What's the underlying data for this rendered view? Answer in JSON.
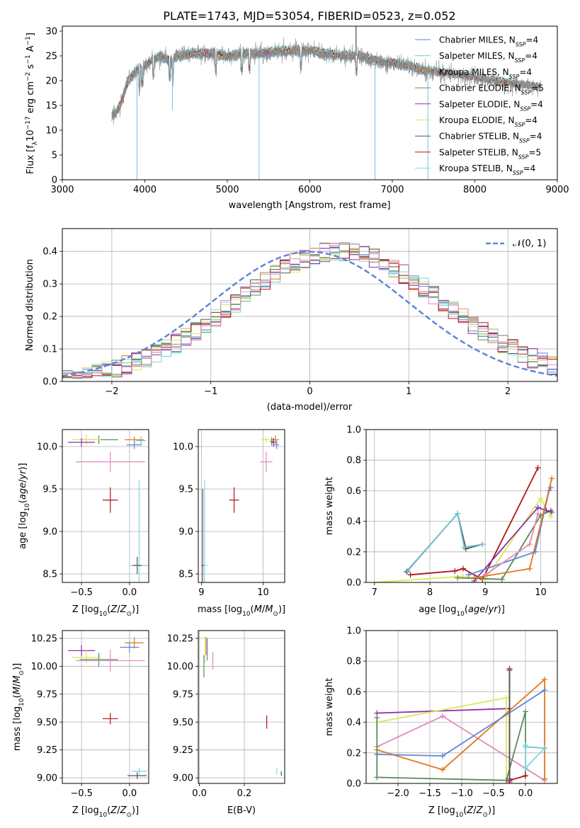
{
  "figure_title": "PLATE=1743, MJD=53054, FIBERID=0523, z=0.052",
  "colors": {
    "chabrier_miles": "#5f86d6",
    "salpeter_miles": "#6fc6d8",
    "kroupa_miles": "#e0781f",
    "chabrier_elodie": "#5c8a5c",
    "salpeter_elodie": "#8e2fa6",
    "kroupa_elodie": "#d9e85a",
    "chabrier_stelib": "#555555",
    "salpeter_stelib": "#b01515",
    "kroupa_stelib": "#7fd8e0",
    "pink": "#e08ac0",
    "data_grey": "#8c8c8c",
    "normal_curve": "#5f86d6"
  },
  "chart_data": [
    {
      "id": "spectrum",
      "type": "line",
      "title": "PLATE=1743, MJD=53054, FIBERID=0523, z=0.052",
      "xlabel": "wavelength [Angstrom, rest frame]",
      "ylabel": "Flux [f_λ 10^-17 erg cm^-2 s^-1 A^-1]",
      "xlim": [
        3000,
        9000
      ],
      "ylim": [
        0,
        31
      ],
      "xticks": [
        3000,
        4000,
        5000,
        6000,
        7000,
        8000,
        9000
      ],
      "yticks": [
        0,
        5,
        10,
        15,
        20,
        25,
        30
      ],
      "grid": false,
      "legend_position": "upper-right",
      "series": [
        {
          "name": "Chabrier MILES, N_SSP=4"
        },
        {
          "name": "Salpeter MILES, N_SSP=4"
        },
        {
          "name": "Kroupa MILES, N_SSP=4"
        },
        {
          "name": "Chabrier ELODIE, N_SSP=5"
        },
        {
          "name": "Salpeter ELODIE, N_SSP=4"
        },
        {
          "name": "Kroupa ELODIE, N_SSP=4"
        },
        {
          "name": "Chabrier STELIB, N_SSP=4"
        },
        {
          "name": "Salpeter STELIB, N_SSP=5"
        },
        {
          "name": "Kroupa STELIB, N_SSP=4"
        }
      ],
      "continuum": [
        [
          3600,
          13
        ],
        [
          3650,
          13.5
        ],
        [
          3700,
          15
        ],
        [
          3800,
          20
        ],
        [
          3900,
          22
        ],
        [
          4000,
          23
        ],
        [
          4100,
          24.5
        ],
        [
          4200,
          25
        ],
        [
          4300,
          24
        ],
        [
          4400,
          25
        ],
        [
          4600,
          25.5
        ],
        [
          4800,
          25.5
        ],
        [
          5000,
          25
        ],
        [
          5200,
          25.5
        ],
        [
          5400,
          25.5
        ],
        [
          5600,
          26
        ],
        [
          5800,
          26
        ],
        [
          6000,
          26
        ],
        [
          6200,
          25.5
        ],
        [
          6400,
          25
        ],
        [
          6600,
          25
        ],
        [
          6800,
          24
        ],
        [
          7000,
          23.5
        ],
        [
          7200,
          23
        ],
        [
          7400,
          22
        ],
        [
          7600,
          21.5
        ],
        [
          7800,
          21
        ],
        [
          8000,
          20.5
        ],
        [
          8200,
          20
        ],
        [
          8400,
          19.5
        ],
        [
          8600,
          19
        ],
        [
          8800,
          18.7
        ]
      ]
    },
    {
      "id": "residuals",
      "type": "step",
      "xlabel": "(data-model)/error",
      "ylabel": "Normed distribution",
      "xlim": [
        -2.5,
        2.5
      ],
      "ylim": [
        0,
        0.47
      ],
      "xticks": [
        -2,
        -1,
        0,
        1,
        2
      ],
      "yticks": [
        0.0,
        0.1,
        0.2,
        0.3,
        0.4
      ],
      "grid": true,
      "legend_position": "upper-right",
      "legend_label": "𝒩(0, 1)"
    },
    {
      "id": "age_vs_Z",
      "type": "errorbar",
      "xlabel": "Z [log10(Z/Z⊙)]",
      "ylabel": "age  [log10(age/yr)]",
      "xlim": [
        -0.7,
        0.2
      ],
      "ylim": [
        8.4,
        10.2
      ],
      "xticks": [
        -0.5,
        0.0
      ],
      "yticks": [
        8.5,
        9.0,
        9.5,
        10.0
      ],
      "grid": true,
      "points": [
        {
          "c": "kroupa_miles",
          "x": 0.05,
          "xe": 0.1,
          "y": 10.08,
          "ye": 0.04
        },
        {
          "c": "chabrier_elodie",
          "x": -0.32,
          "xe": 0.2,
          "y": 10.08,
          "ye": 0.05
        },
        {
          "c": "kroupa_elodie",
          "x": -0.45,
          "xe": 0.15,
          "y": 10.08,
          "ye": 0.06
        },
        {
          "c": "salpeter_elodie",
          "x": -0.5,
          "xe": 0.14,
          "y": 10.05,
          "ye": 0.05
        },
        {
          "c": "chabrier_miles",
          "x": 0.05,
          "xe": 0.08,
          "y": 10.02,
          "ye": 0.05
        },
        {
          "c": "salpeter_miles",
          "x": 0.12,
          "xe": 0.05,
          "y": 10.07,
          "ye": 0.05
        },
        {
          "c": "pink",
          "x": -0.2,
          "xe": 0.36,
          "y": 9.82,
          "ye": 0.12
        },
        {
          "c": "salpeter_stelib",
          "x": -0.2,
          "xe": 0.08,
          "y": 9.37,
          "ye": 0.15
        },
        {
          "c": "kroupa_stelib",
          "x": 0.1,
          "xe": 0.1,
          "y": 8.6,
          "ye": 1.0
        },
        {
          "c": "chabrier_stelib",
          "x": 0.08,
          "xe": 0.05,
          "y": 8.6,
          "ye": 0.1
        }
      ]
    },
    {
      "id": "age_vs_mass",
      "type": "errorbar",
      "xlabel": "mass [log10(M/M⊙)]",
      "ylabel": "",
      "xlim": [
        8.95,
        10.35
      ],
      "ylim": [
        8.4,
        10.2
      ],
      "xticks": [
        9,
        10
      ],
      "yticks": [
        8.5,
        9.0,
        9.5,
        10.0
      ],
      "grid": true,
      "points": [
        {
          "c": "kroupa_miles",
          "x": 10.2,
          "xe": 0.06,
          "y": 10.08,
          "ye": 0.05
        },
        {
          "c": "kroupa_elodie",
          "x": 10.05,
          "xe": 0.08,
          "y": 10.08,
          "ye": 0.04
        },
        {
          "c": "chabrier_elodie",
          "x": 10.14,
          "xe": 0.03,
          "y": 10.06,
          "ye": 0.05
        },
        {
          "c": "salpeter_elodie",
          "x": 10.17,
          "xe": 0.04,
          "y": 10.05,
          "ye": 0.05
        },
        {
          "c": "chabrier_miles",
          "x": 10.22,
          "xe": 0.04,
          "y": 10.02,
          "ye": 0.05
        },
        {
          "c": "pink",
          "x": 10.05,
          "xe": 0.1,
          "y": 9.82,
          "ye": 0.12
        },
        {
          "c": "salpeter_stelib",
          "x": 9.53,
          "xe": 0.08,
          "y": 9.37,
          "ye": 0.15
        },
        {
          "c": "kroupa_stelib",
          "x": 9.05,
          "xe": 0.05,
          "y": 8.6,
          "ye": 1.0
        },
        {
          "c": "chabrier_stelib",
          "x": 9.02,
          "xe": 0.02,
          "y": 8.6,
          "ye": 0.9
        }
      ]
    },
    {
      "id": "weight_vs_age",
      "type": "line",
      "xlabel": "age  [log10(age/yr)]",
      "ylabel": "mass weight",
      "xlim": [
        6.85,
        10.3
      ],
      "ylim": [
        0,
        1
      ],
      "xticks": [
        7,
        8,
        9,
        10
      ],
      "yticks": [
        0.0,
        0.2,
        0.4,
        0.6,
        0.8,
        1.0
      ],
      "grid": true,
      "series": [
        {
          "c": "chabrier_stelib",
          "x": [
            7.58,
            8.5,
            8.65,
            8.95
          ],
          "y": [
            0.07,
            0.45,
            0.22,
            0.25
          ]
        },
        {
          "c": "salpeter_miles",
          "x": [
            7.6,
            8.5,
            8.62,
            8.95
          ],
          "y": [
            0.075,
            0.45,
            0.23,
            0.25
          ]
        },
        {
          "c": "salpeter_stelib",
          "x": [
            7.65,
            8.45,
            8.6,
            8.95,
            9.95
          ],
          "y": [
            0.05,
            0.075,
            0.09,
            0.02,
            0.75
          ]
        },
        {
          "c": "kroupa_elodie",
          "x": [
            7.0,
            8.6,
            9.0,
            10.0,
            10.18
          ],
          "y": [
            0.0,
            0.04,
            0.02,
            0.55,
            0.43
          ]
        },
        {
          "c": "chabrier_elodie",
          "x": [
            8.5,
            9.3,
            10.0,
            10.18
          ],
          "y": [
            0.03,
            0.02,
            0.44,
            0.47
          ]
        },
        {
          "c": "salpeter_elodie",
          "x": [
            8.8,
            9.95,
            10.1,
            10.2
          ],
          "y": [
            0.01,
            0.49,
            0.47,
            0.46
          ]
        },
        {
          "c": "chabrier_miles",
          "x": [
            8.7,
            9.9,
            10.15,
            10.18
          ],
          "y": [
            0.05,
            0.2,
            0.6,
            0.62
          ]
        },
        {
          "c": "kroupa_miles",
          "x": [
            8.8,
            9.8,
            10.2
          ],
          "y": [
            0.03,
            0.09,
            0.68
          ]
        },
        {
          "c": "pink",
          "x": [
            9.0,
            9.8,
            9.95
          ],
          "y": [
            0.05,
            0.25,
            0.45
          ]
        }
      ]
    },
    {
      "id": "mass_vs_Z",
      "type": "errorbar",
      "xlabel": "Z [log10(Z/Z⊙)]",
      "ylabel": "mass [log10(M/M⊙)]",
      "xlim": [
        -0.7,
        0.2
      ],
      "ylim": [
        8.95,
        10.32
      ],
      "xticks": [
        -0.5,
        0.0
      ],
      "yticks": [
        9.0,
        9.25,
        9.5,
        9.75,
        10.0,
        10.25
      ],
      "grid": true,
      "points": [
        {
          "c": "kroupa_miles",
          "x": 0.05,
          "xe": 0.1,
          "y": 10.21,
          "ye": 0.05
        },
        {
          "c": "chabrier_miles",
          "x": 0.0,
          "xe": 0.1,
          "y": 10.17,
          "ye": 0.05
        },
        {
          "c": "salpeter_elodie",
          "x": -0.5,
          "xe": 0.14,
          "y": 10.14,
          "ye": 0.05
        },
        {
          "c": "kroupa_elodie",
          "x": -0.45,
          "xe": 0.15,
          "y": 10.08,
          "ye": 0.06
        },
        {
          "c": "chabrier_elodie",
          "x": -0.32,
          "xe": 0.2,
          "y": 10.06,
          "ye": 0.06
        },
        {
          "c": "pink",
          "x": -0.2,
          "xe": 0.36,
          "y": 10.05,
          "ye": 0.1
        },
        {
          "c": "salpeter_stelib",
          "x": -0.2,
          "xe": 0.08,
          "y": 9.53,
          "ye": 0.05
        },
        {
          "c": "kroupa_stelib",
          "x": 0.1,
          "xe": 0.08,
          "y": 9.06,
          "ye": 0.03
        },
        {
          "c": "chabrier_stelib",
          "x": 0.08,
          "xe": 0.1,
          "y": 9.02,
          "ye": 0.03
        }
      ]
    },
    {
      "id": "mass_vs_ebv",
      "type": "errorbar",
      "xlabel": "E(B-V)",
      "ylabel": "",
      "xlim": [
        -0.005,
        0.38
      ],
      "ylim": [
        8.95,
        10.32
      ],
      "xticks": [
        0.0,
        0.2
      ],
      "yticks": [
        9.0,
        9.25,
        9.5,
        9.75,
        10.0,
        10.25
      ],
      "grid": true,
      "points": [
        {
          "c": "kroupa_miles",
          "x": 0.03,
          "xe": 0,
          "y": 10.18,
          "ye": 0.08
        },
        {
          "c": "chabrier_miles",
          "x": 0.035,
          "xe": 0,
          "y": 10.15,
          "ye": 0.1
        },
        {
          "c": "chabrier_elodie",
          "x": 0.02,
          "xe": 0,
          "y": 10.0,
          "ye": 0.1
        },
        {
          "c": "kroupa_elodie",
          "x": 0.025,
          "xe": 0,
          "y": 10.15,
          "ye": 0.12
        },
        {
          "c": "pink",
          "x": 0.06,
          "xe": 0,
          "y": 10.05,
          "ye": 0.08
        },
        {
          "c": "salpeter_stelib",
          "x": 0.3,
          "xe": 0,
          "y": 9.5,
          "ye": 0.06
        },
        {
          "c": "kroupa_stelib",
          "x": 0.345,
          "xe": 0,
          "y": 9.06,
          "ye": 0.03
        },
        {
          "c": "chabrier_stelib",
          "x": 0.365,
          "xe": 0,
          "y": 9.04,
          "ye": 0.02
        }
      ]
    },
    {
      "id": "weight_vs_Z",
      "type": "line",
      "xlabel": "Z [log10(Z/Z⊙)]",
      "ylabel": "mass weight",
      "xlim": [
        -2.5,
        0.5
      ],
      "ylim": [
        0,
        1
      ],
      "xticks": [
        -2.0,
        -1.5,
        -1.0,
        -0.5,
        0.0
      ],
      "yticks": [
        0.0,
        0.2,
        0.4,
        0.6,
        0.8,
        1.0
      ],
      "grid": true,
      "series": [
        {
          "c": "salpeter_elodie",
          "x": [
            -2.33,
            -0.25,
            -0.25
          ],
          "y": [
            0.46,
            0.49,
            0.01
          ]
        },
        {
          "c": "kroupa_elodie",
          "x": [
            -2.33,
            -0.3,
            -0.3
          ],
          "y": [
            0.4,
            0.56,
            0.02
          ]
        },
        {
          "c": "pink",
          "x": [
            -2.33,
            -1.3,
            0.3
          ],
          "y": [
            0.24,
            0.44,
            0.02
          ]
        },
        {
          "c": "kroupa_miles",
          "x": [
            -2.33,
            -1.3,
            0.3,
            0.3
          ],
          "y": [
            0.22,
            0.09,
            0.68,
            0.03
          ]
        },
        {
          "c": "chabrier_miles",
          "x": [
            -2.33,
            -1.3,
            0.3
          ],
          "y": [
            0.19,
            0.18,
            0.61
          ]
        },
        {
          "c": "chabrier_elodie",
          "x": [
            -2.33,
            -2.33,
            -0.3,
            0.0,
            0.0
          ],
          "y": [
            0.43,
            0.04,
            0.02,
            0.47,
            0.05
          ]
        },
        {
          "c": "salpeter_stelib",
          "x": [
            -0.25,
            -0.25,
            0.0
          ],
          "y": [
            0.75,
            0.02,
            0.05
          ]
        },
        {
          "c": "chabrier_stelib",
          "x": [
            -0.25,
            -0.25
          ],
          "y": [
            0.74,
            0.03
          ]
        },
        {
          "c": "kroupa_stelib",
          "x": [
            0.0,
            0.0,
            0.3
          ],
          "y": [
            0.25,
            0.1,
            0.23
          ]
        },
        {
          "c": "salpeter_miles",
          "x": [
            0.0,
            0.3
          ],
          "y": [
            0.24,
            0.23
          ]
        }
      ]
    }
  ]
}
